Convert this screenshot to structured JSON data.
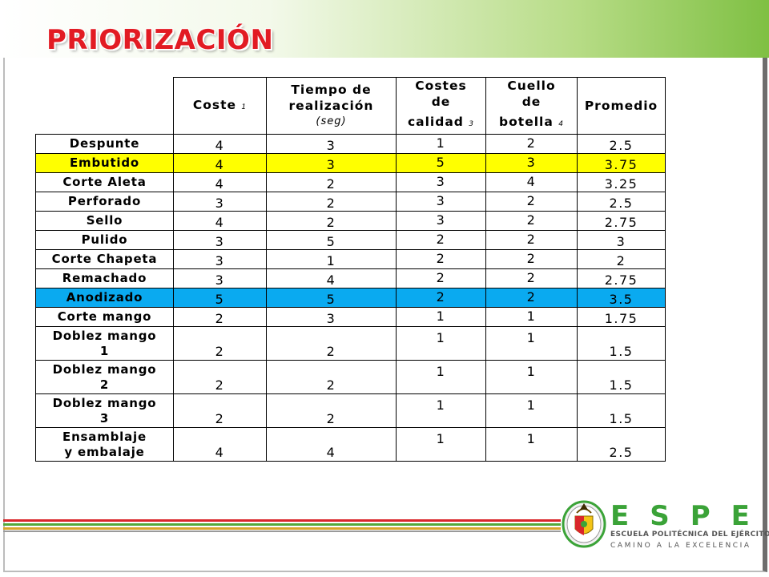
{
  "title": "PRIORIZACIÓN",
  "table": {
    "headers": {
      "coste": "Coste",
      "coste_sub": "1",
      "tiempo_line1": "Tiempo de",
      "tiempo_line2": "realización",
      "tiempo_unit": "(seg)",
      "costes_line1": "Costes",
      "costes_line2": "de",
      "costes_line3": "calidad",
      "costes_sub": "3",
      "cuello_line1": "Cuello",
      "cuello_line2": "de",
      "cuello_line3": "botella",
      "cuello_sub": "4",
      "promedio": "Promedio"
    },
    "rows": [
      {
        "name": "Despunte",
        "coste": "4",
        "tiempo": "3",
        "calidad": "1",
        "botella": "2",
        "promedio": "2.5"
      },
      {
        "name": "Embutido",
        "coste": "4",
        "tiempo": "3",
        "calidad": "5",
        "botella": "3",
        "promedio": "3.75"
      },
      {
        "name": "Corte Aleta",
        "coste": "4",
        "tiempo": "2",
        "calidad": "3",
        "botella": "4",
        "promedio": "3.25"
      },
      {
        "name": "Perforado",
        "coste": "3",
        "tiempo": "2",
        "calidad": "3",
        "botella": "2",
        "promedio": "2.5"
      },
      {
        "name": "Sello",
        "coste": "4",
        "tiempo": "2",
        "calidad": "3",
        "botella": "2",
        "promedio": "2.75"
      },
      {
        "name": "Pulido",
        "coste": "3",
        "tiempo": "5",
        "calidad": "2",
        "botella": "2",
        "promedio": "3"
      },
      {
        "name": "Corte Chapeta",
        "coste": "3",
        "tiempo": "1",
        "calidad": "2",
        "botella": "2",
        "promedio": "2"
      },
      {
        "name": "Remachado",
        "coste": "3",
        "tiempo": "4",
        "calidad": "2",
        "botella": "2",
        "promedio": "2.75"
      },
      {
        "name": "Anodizado",
        "coste": "5",
        "tiempo": "5",
        "calidad": "2",
        "botella": "2",
        "promedio": "3.5"
      },
      {
        "name": "Corte mango",
        "coste": "2",
        "tiempo": "3",
        "calidad": "1",
        "botella": "1",
        "promedio": "1.75"
      },
      {
        "name_line1": "Doblez mango",
        "name_line2": "1",
        "coste": "2",
        "tiempo": "2",
        "calidad": "1",
        "botella": "1",
        "promedio": "1.5"
      },
      {
        "name_line1": "Doblez mango",
        "name_line2": "2",
        "coste": "2",
        "tiempo": "2",
        "calidad": "1",
        "botella": "1",
        "promedio": "1.5"
      },
      {
        "name_line1": "Doblez mango",
        "name_line2": "3",
        "coste": "2",
        "tiempo": "2",
        "calidad": "1",
        "botella": "1",
        "promedio": "1.5"
      },
      {
        "name_line1": "Ensamblaje",
        "name_line2": "y embalaje",
        "coste": "4",
        "tiempo": "4",
        "calidad": "1",
        "botella": "1",
        "promedio": "2.5"
      }
    ]
  },
  "logo": {
    "letters": "ESPE",
    "line1": "ESCUELA POLITÉCNICA DEL EJÉRCITO",
    "line2": "CAMINO A LA EXCELENCIA"
  },
  "colors": {
    "title": "#e21b23",
    "highlight_yellow": "#ffff00",
    "highlight_blue": "#0aaaf0",
    "brand_green": "#3ba338",
    "stripe_red": "#d9262a",
    "stripe_green": "#53a83a"
  }
}
